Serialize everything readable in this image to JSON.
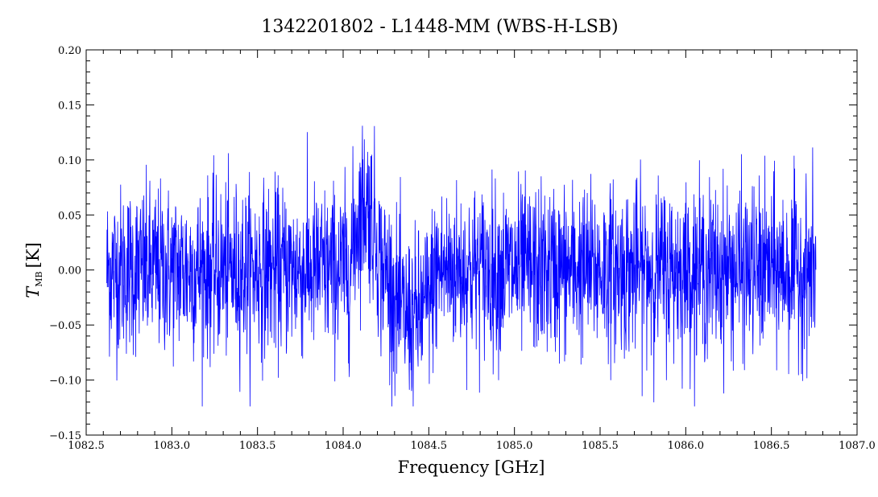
{
  "chart_data": {
    "type": "line",
    "title": "1342201802 - L1448-MM (WBS-H-LSB)",
    "xlabel": "Frequency [GHz]",
    "ylabel_main": "T",
    "ylabel_sub": "MB",
    "ylabel_unit": "[K]",
    "xlim": [
      1082.5,
      1087.0
    ],
    "ylim": [
      -0.15,
      0.2
    ],
    "xticks": [
      1082.5,
      1083.0,
      1083.5,
      1084.0,
      1084.5,
      1085.0,
      1085.5,
      1086.0,
      1086.5,
      1087.0
    ],
    "xtick_labels": [
      "1082.5",
      "1083.0",
      "1083.5",
      "1084.0",
      "1084.5",
      "1085.0",
      "1085.5",
      "1086.0",
      "1086.5",
      "1087.0"
    ],
    "yticks": [
      -0.15,
      -0.1,
      -0.05,
      0.0,
      0.05,
      0.1,
      0.15,
      0.2
    ],
    "ytick_labels": [
      "−0.15",
      "−0.10",
      "−0.05",
      "0.00",
      "0.05",
      "0.10",
      "0.15",
      "0.20"
    ],
    "series": [
      {
        "color": "#0000ff",
        "x_range": [
          1082.62,
          1086.76
        ],
        "baseline": 0.0,
        "noise_rms": 0.045,
        "features": [
          {
            "type": "emission",
            "x": [
              1084.04,
              1084.22
            ],
            "y": 0.06
          },
          {
            "type": "absorption",
            "x": [
              1084.25,
              1084.55
            ],
            "y": -0.045
          }
        ],
        "extremes": {
          "max": 0.148,
          "min": -0.124
        }
      }
    ]
  }
}
